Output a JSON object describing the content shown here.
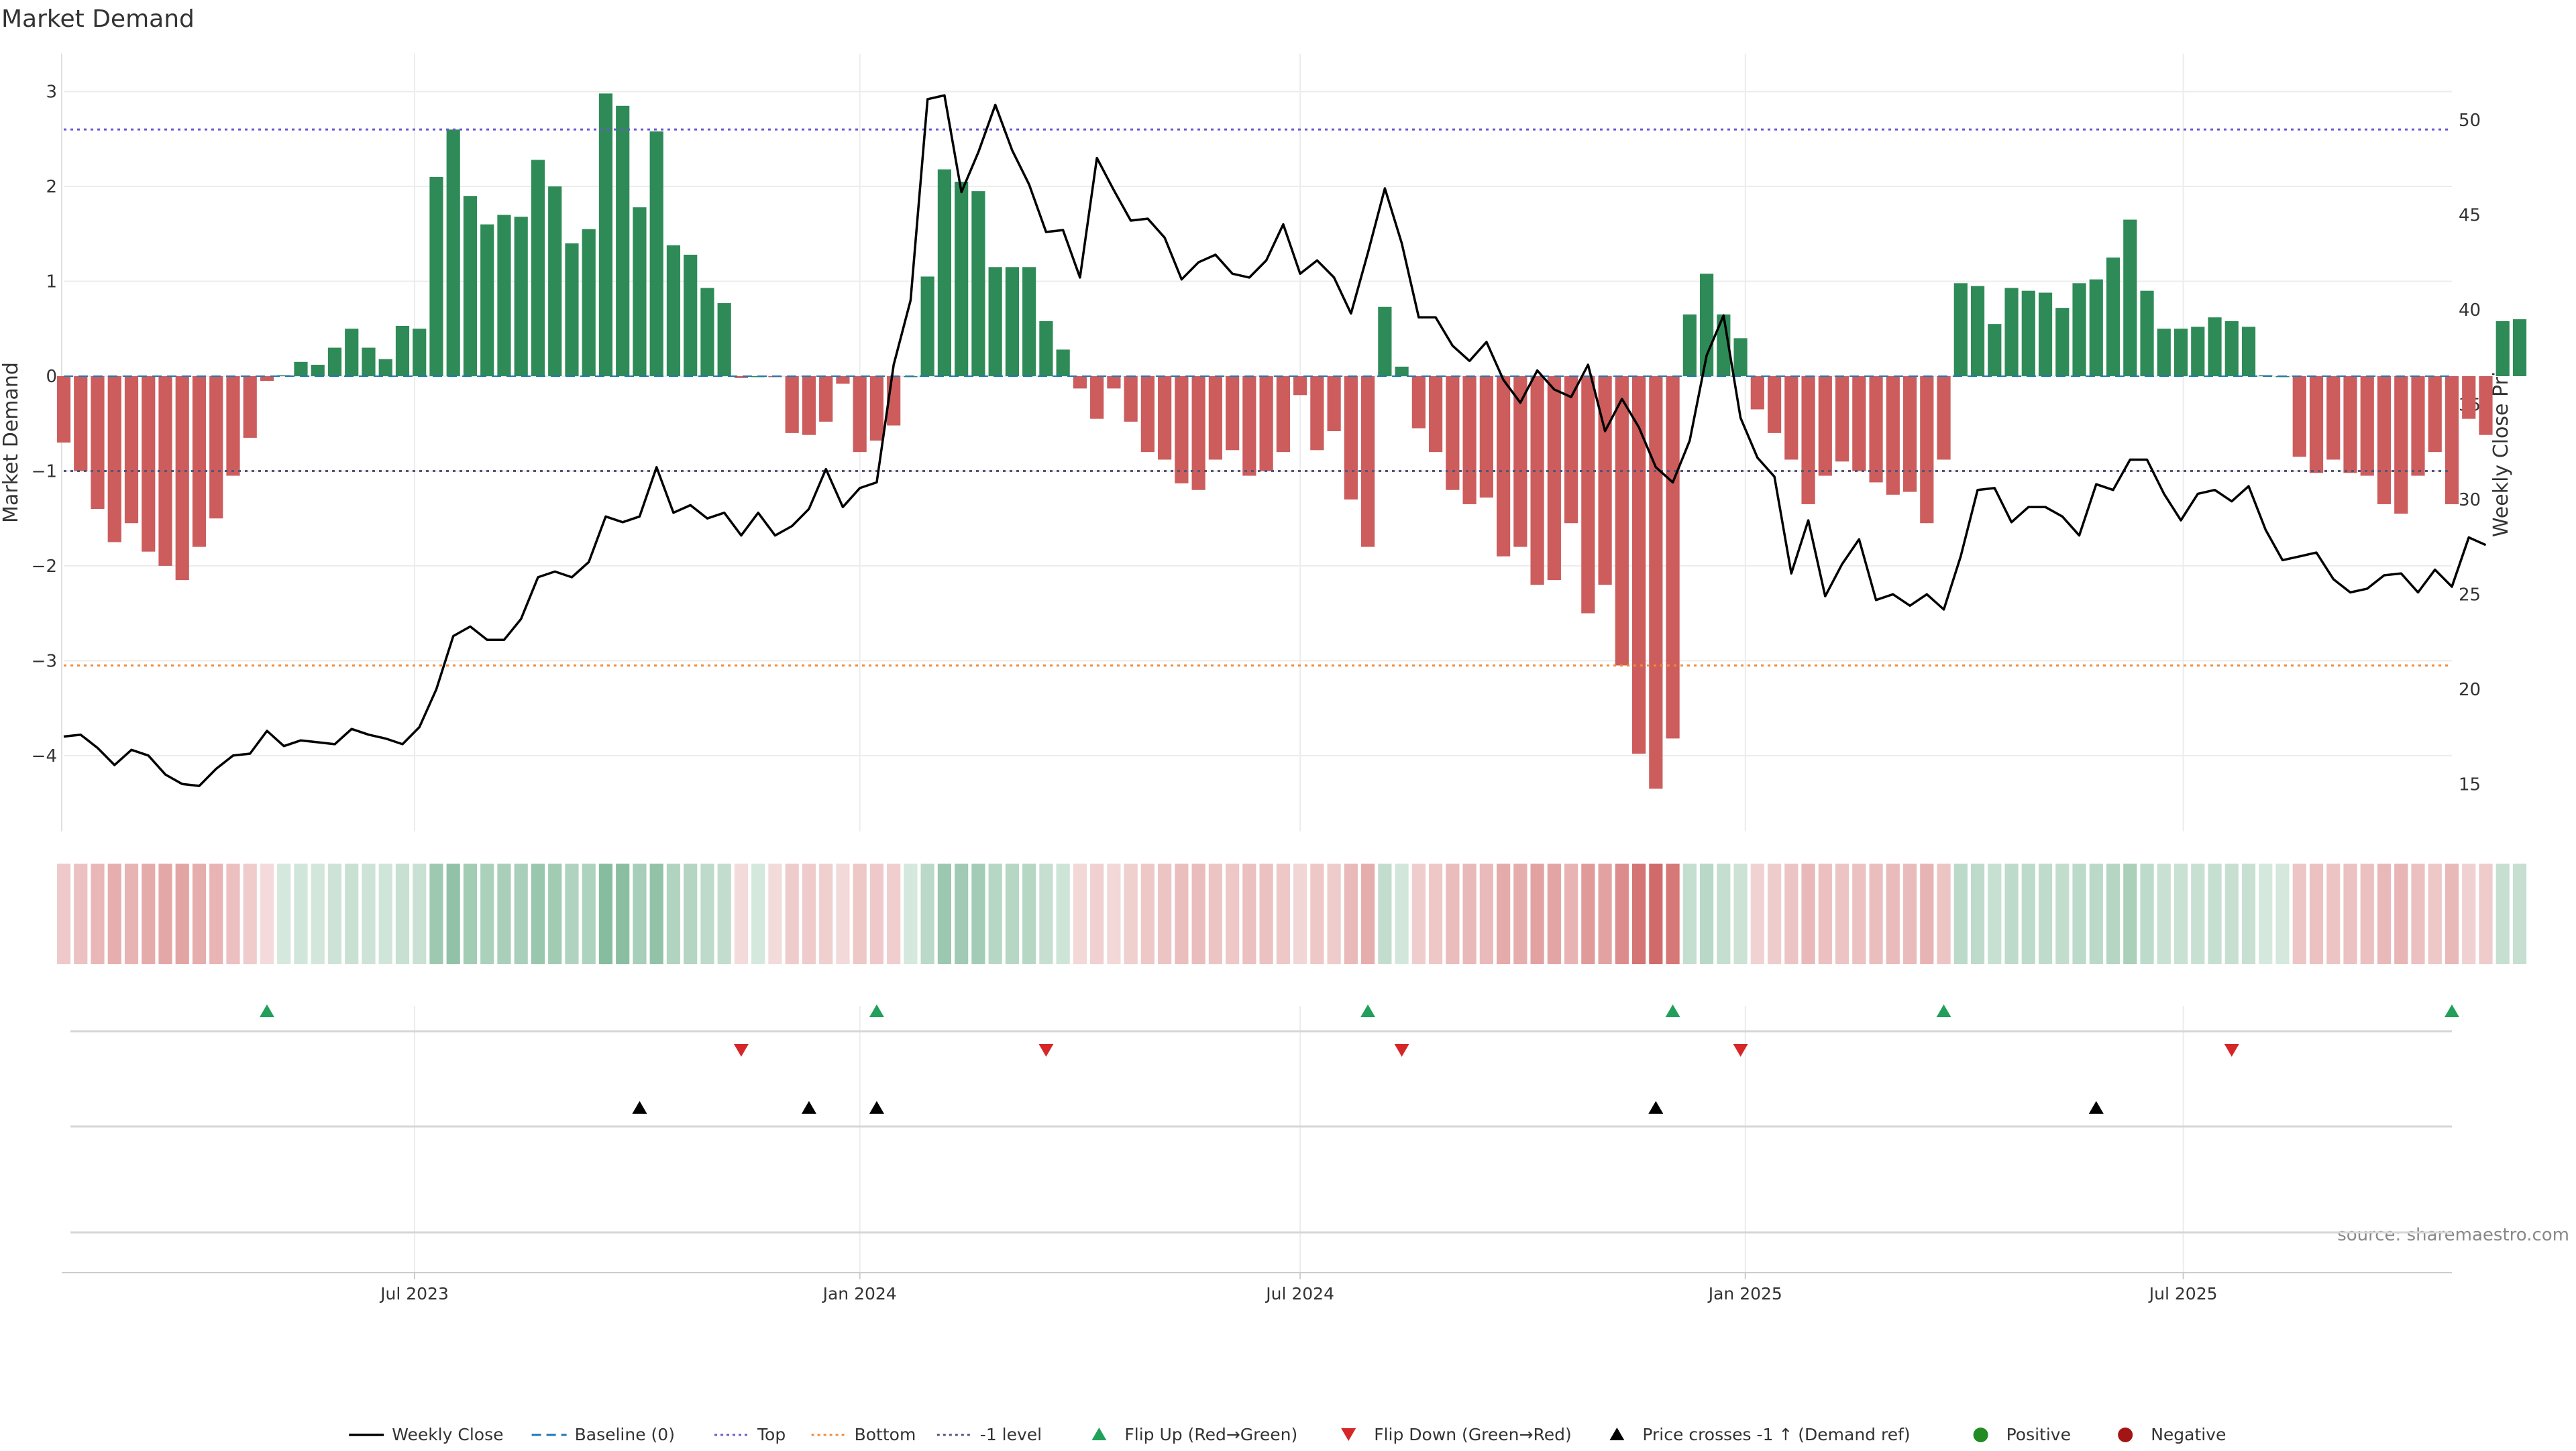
{
  "title": "Market Demand",
  "source_note": "source: sharemaestro.com",
  "chart_data": {
    "type": "bar",
    "title": "Market Demand",
    "start_date": "2023-02-06",
    "weeks": 142,
    "ylabel": "Market Demand",
    "ylabel_right": "Weekly Close Price",
    "ylim": [
      -4.8,
      3.4
    ],
    "ylim_right": [
      12.5,
      53.5
    ],
    "yticks": [
      -4,
      -3,
      -2,
      -1,
      0,
      1,
      2,
      3
    ],
    "ytick_labels": [
      "−4",
      "−3",
      "−2",
      "−1",
      "0",
      "1",
      "2",
      "3"
    ],
    "yticks_right": [
      15,
      20,
      25,
      30,
      35,
      40,
      45,
      50
    ],
    "x_ticks": [
      {
        "date": "2023-07-01",
        "label": "Jul 2023"
      },
      {
        "date": "2024-01-01",
        "label": "Jan 2024"
      },
      {
        "date": "2024-07-01",
        "label": "Jul 2024"
      },
      {
        "date": "2025-01-01",
        "label": "Jan 2025"
      },
      {
        "date": "2025-07-01",
        "label": "Jul 2025"
      }
    ],
    "reference_lines": {
      "top": 2.6,
      "bottom": -3.05,
      "minus_one": -1.0,
      "baseline": 0
    },
    "demand": [
      -0.7,
      -1.0,
      -1.4,
      -1.75,
      -1.55,
      -1.85,
      -2.0,
      -2.15,
      -1.8,
      -1.5,
      -1.05,
      -0.65,
      -0.05,
      0.01,
      0.15,
      0.12,
      0.3,
      0.5,
      0.3,
      0.18,
      0.53,
      0.5,
      2.1,
      2.6,
      1.9,
      1.6,
      1.7,
      1.68,
      2.28,
      2.0,
      1.4,
      1.55,
      2.98,
      2.85,
      1.78,
      2.58,
      1.38,
      1.28,
      0.93,
      0.77,
      -0.02,
      0.0,
      -0.01,
      -0.6,
      -0.62,
      -0.48,
      -0.08,
      -0.8,
      -0.68,
      -0.52,
      0.0,
      1.05,
      2.18,
      2.05,
      1.95,
      1.15,
      1.15,
      1.15,
      0.58,
      0.28,
      -0.13,
      -0.45,
      -0.13,
      -0.48,
      -0.8,
      -0.88,
      -1.13,
      -1.2,
      -0.88,
      -0.78,
      -1.05,
      -1.0,
      -0.8,
      -0.2,
      -0.78,
      -0.58,
      -1.3,
      -1.8,
      0.73,
      0.1,
      -0.55,
      -0.8,
      -1.2,
      -1.35,
      -1.28,
      -1.9,
      -1.8,
      -2.2,
      -2.15,
      -1.55,
      -2.5,
      -2.2,
      -3.05,
      -3.98,
      -4.35,
      -3.82,
      0.65,
      1.08,
      0.65,
      0.4,
      -0.35,
      -0.6,
      -0.88,
      -1.35,
      -1.05,
      -0.9,
      -1.0,
      -1.12,
      -1.25,
      -1.22,
      -1.55,
      -0.88,
      0.98,
      0.95,
      0.55,
      0.93,
      0.9,
      0.88,
      0.72,
      0.98,
      1.02,
      1.25,
      1.65,
      0.9,
      0.5,
      0.5,
      0.52,
      0.62,
      0.58,
      0.52,
      0.01,
      0.0,
      -0.85,
      -1.02,
      -0.88,
      -1.02,
      -1.05,
      -1.35,
      -1.45,
      -1.05,
      -0.8,
      -1.35,
      -0.45,
      -0.62,
      0.58,
      0.6
    ],
    "weekly_close": [
      17.5,
      17.6,
      16.9,
      16.0,
      16.8,
      16.5,
      15.5,
      15.0,
      14.9,
      15.8,
      16.5,
      16.6,
      17.8,
      17.0,
      17.3,
      17.2,
      17.1,
      17.9,
      17.6,
      17.4,
      17.1,
      18.0,
      20.0,
      22.8,
      23.3,
      22.6,
      22.6,
      23.7,
      25.9,
      26.2,
      25.9,
      26.7,
      29.1,
      28.8,
      29.1,
      31.7,
      29.3,
      29.7,
      29.0,
      29.3,
      28.1,
      29.3,
      28.1,
      28.6,
      29.5,
      31.6,
      29.6,
      30.6,
      30.9,
      37.1,
      40.5,
      51.1,
      51.3,
      46.2,
      48.3,
      50.8,
      48.4,
      46.6,
      44.1,
      44.2,
      41.7,
      48.0,
      46.3,
      44.7,
      44.8,
      43.8,
      41.6,
      42.5,
      42.9,
      41.9,
      41.7,
      42.6,
      44.5,
      41.9,
      42.6,
      41.7,
      39.8,
      43.0,
      46.4,
      43.5,
      39.6,
      39.6,
      38.1,
      37.3,
      38.3,
      36.3,
      35.1,
      36.8,
      35.8,
      35.4,
      37.1,
      33.6,
      35.3,
      33.8,
      31.7,
      30.9,
      33.1,
      37.6,
      39.7,
      34.3,
      32.2,
      31.2,
      26.1,
      28.9,
      24.9,
      26.6,
      27.9,
      24.7,
      25.0,
      24.4,
      25.0,
      24.2,
      27.0,
      30.5,
      30.6,
      28.8,
      29.6,
      29.6,
      29.1,
      28.1,
      30.8,
      30.5,
      32.1,
      32.1,
      30.3,
      28.9,
      30.3,
      30.5,
      29.9,
      30.7,
      28.4,
      26.8,
      27.0,
      27.2,
      25.8,
      25.1,
      25.3,
      26.0,
      26.1,
      25.1,
      26.3,
      25.4,
      28.0,
      27.6
    ],
    "events": {
      "flip_up_weeks": [
        13,
        49,
        78,
        96,
        112,
        142
      ],
      "flip_down_weeks": [
        41,
        59,
        80,
        100,
        129
      ],
      "price_cross_weeks": [
        35,
        45,
        49,
        95,
        121
      ]
    },
    "legend": [
      {
        "label": "Weekly Close",
        "kind": "line",
        "color": "#000000"
      },
      {
        "label": "Baseline (0)",
        "kind": "dash",
        "color": "#1f77b4"
      },
      {
        "label": "Top",
        "kind": "dot",
        "color": "#6a5acd"
      },
      {
        "label": "Bottom",
        "kind": "dot",
        "color": "#f08a3a"
      },
      {
        "label": "-1 level",
        "kind": "dot",
        "color": "#555577"
      },
      {
        "label": "Flip Up (Red→Green)",
        "kind": "tri-up",
        "color": "#22a05a"
      },
      {
        "label": "Flip Down (Green→Red)",
        "kind": "tri-down",
        "color": "#d62728"
      },
      {
        "label": "Price crosses -1 ↑ (Demand ref)",
        "kind": "tri-up",
        "color": "#000000"
      },
      {
        "label": "Positive",
        "kind": "circle",
        "color": "#228b22"
      },
      {
        "label": "Negative",
        "kind": "circle",
        "color": "#a31515"
      }
    ],
    "colors": {
      "positive": "#2e8b57",
      "negative": "#cd5c5c",
      "close": "#000000"
    }
  }
}
